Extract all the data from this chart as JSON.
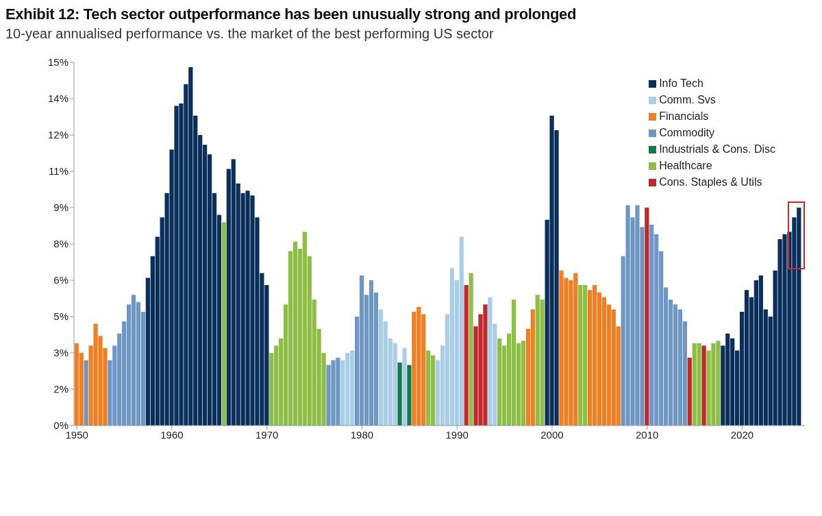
{
  "chart_data": {
    "type": "bar",
    "title": "Exhibit 12: Tech sector outperformance has been unusually strong and prolonged",
    "subtitle": "10-year annualised performance vs. the market of the best performing US sector",
    "series": [
      {
        "name": "Info Tech",
        "color": "#0b2f5b",
        "x": [
          1957.5,
          1958,
          1958.5,
          1959,
          1959.5,
          1960,
          1960.5,
          1961,
          1961.5,
          1962,
          1962.5,
          1963,
          1963.5,
          1964,
          1964.5,
          1965,
          1966,
          1966.5,
          1967,
          1967.5,
          1968,
          1968.5,
          1969,
          1969.5,
          1970,
          1999.5,
          2000,
          2000.5,
          2018,
          2018.5,
          2019,
          2019.5,
          2020,
          2020.5,
          2021,
          2021.5,
          2022,
          2022.5,
          2023,
          2023.5,
          2024,
          2024.5,
          2025,
          2025.5,
          2026
        ],
        "values": [
          6.1,
          7.0,
          7.8,
          8.6,
          9.6,
          11.4,
          13.2,
          13.3,
          14.1,
          14.8,
          12.8,
          12.0,
          11.6,
          11.2,
          9.6,
          8.7,
          10.6,
          11.0,
          10.0,
          9.6,
          9.7,
          9.5,
          8.6,
          6.3,
          5.8,
          8.5,
          12.8,
          12.2,
          3.3,
          3.8,
          3.6,
          3.1,
          4.7,
          5.6,
          5.3,
          6.0,
          6.2,
          4.8,
          4.5,
          6.4,
          7.7,
          7.9,
          8.0,
          8.6,
          9.0
        ]
      },
      {
        "name": "Comm. Svs",
        "color": "#aacde8",
        "x": [
          1978,
          1978.5,
          1979,
          1982,
          1982.5,
          1983,
          1983.5,
          1984.5,
          1988,
          1988.5,
          1989,
          1989.5,
          1990,
          1990.5,
          1993.5,
          1994
        ],
        "values": [
          2.7,
          3.0,
          3.1,
          4.8,
          4.3,
          3.6,
          3.4,
          3.2,
          2.7,
          3.3,
          4.6,
          6.5,
          6.0,
          7.8,
          5.3,
          4.2
        ]
      },
      {
        "name": "Financials",
        "color": "#f07f22",
        "x": [
          1950,
          1950.5,
          1951.5,
          1952,
          1952.5,
          1953,
          1985.5,
          1986,
          1986.5,
          1997.5,
          1998,
          2001,
          2001.5,
          2002,
          2002.5,
          2004,
          2004.5,
          2005,
          2005.5,
          2006,
          2006.5,
          2007
        ],
        "values": [
          3.4,
          3.0,
          3.3,
          4.2,
          3.7,
          3.2,
          4.7,
          4.9,
          4.6,
          4.0,
          4.8,
          6.4,
          6.1,
          6.0,
          6.3,
          5.6,
          5.8,
          5.5,
          5.3,
          5.0,
          4.8,
          4.1
        ]
      },
      {
        "name": "Commodity",
        "color": "#6f97c4",
        "x": [
          1951,
          1953.5,
          1954,
          1954.5,
          1955,
          1955.5,
          1956,
          1956.5,
          1957,
          1976.5,
          1977,
          1977.5,
          1979.5,
          1980,
          1980.5,
          1981,
          1981.5,
          2007.5,
          2008,
          2008.5,
          2009,
          2009.5,
          2010.5,
          2011,
          2011.5,
          2012,
          2012.5,
          2013,
          2013.5,
          2014
        ],
        "values": [
          2.7,
          2.7,
          3.3,
          3.8,
          4.3,
          5.0,
          5.4,
          5.1,
          4.7,
          2.5,
          2.7,
          2.8,
          4.5,
          6.2,
          5.4,
          6.0,
          5.5,
          7.0,
          9.1,
          8.6,
          9.1,
          8.2,
          8.3,
          7.9,
          7.2,
          5.7,
          5.2,
          5.0,
          4.8,
          4.3
        ]
      },
      {
        "name": "Industrials & Cons. Disc",
        "color": "#127a4a",
        "x": [
          1984,
          1985
        ],
        "values": [
          2.6,
          2.5
        ]
      },
      {
        "name": "Healthcare",
        "color": "#8dbe45",
        "x": [
          1965.5,
          1970.5,
          1971,
          1971.5,
          1972,
          1972.5,
          1973,
          1973.5,
          1974,
          1974.5,
          1975,
          1975.5,
          1976,
          1987,
          1987.5,
          1991.5,
          1994.5,
          1995,
          1995.5,
          1996,
          1996.5,
          1997,
          1998.5,
          1999,
          2003,
          2003.5,
          2015,
          2015.5,
          2016.5,
          2017,
          2017.5
        ],
        "values": [
          8.4,
          3.0,
          3.3,
          3.6,
          5.0,
          7.2,
          7.6,
          7.3,
          8.0,
          7.0,
          5.2,
          4.0,
          3.0,
          3.1,
          2.9,
          6.3,
          3.6,
          3.3,
          3.8,
          5.2,
          3.4,
          3.5,
          5.4,
          5.2,
          5.8,
          5.8,
          3.4,
          3.4,
          3.1,
          3.4,
          3.5
        ]
      },
      {
        "name": "Cons. Staples & Utils",
        "color": "#c0282c",
        "x": [
          1991,
          1992,
          1992.5,
          1993,
          2010,
          2014.5,
          2016
        ],
        "values": [
          5.8,
          4.1,
          4.6,
          5.0,
          9.0,
          2.8,
          3.3
        ]
      }
    ],
    "xlim": [
      1949.7,
      2026.6
    ],
    "xticks": [
      1950,
      1960,
      1970,
      1980,
      1990,
      2000,
      2010,
      2020
    ],
    "ylim": [
      0,
      15
    ],
    "yticks": [
      {
        "value": 0,
        "label": "0%"
      },
      {
        "value": 1.5,
        "label": "2%"
      },
      {
        "value": 3,
        "label": "3%"
      },
      {
        "value": 4.5,
        "label": "5%"
      },
      {
        "value": 6,
        "label": "6%"
      },
      {
        "value": 7.5,
        "label": "8%"
      },
      {
        "value": 9,
        "label": "9%"
      },
      {
        "value": 10.5,
        "label": "11%"
      },
      {
        "value": 12,
        "label": "12%"
      },
      {
        "value": 13.5,
        "label": "14%"
      },
      {
        "value": 15,
        "label": "15%"
      }
    ],
    "grid": false,
    "legend": "top right"
  }
}
